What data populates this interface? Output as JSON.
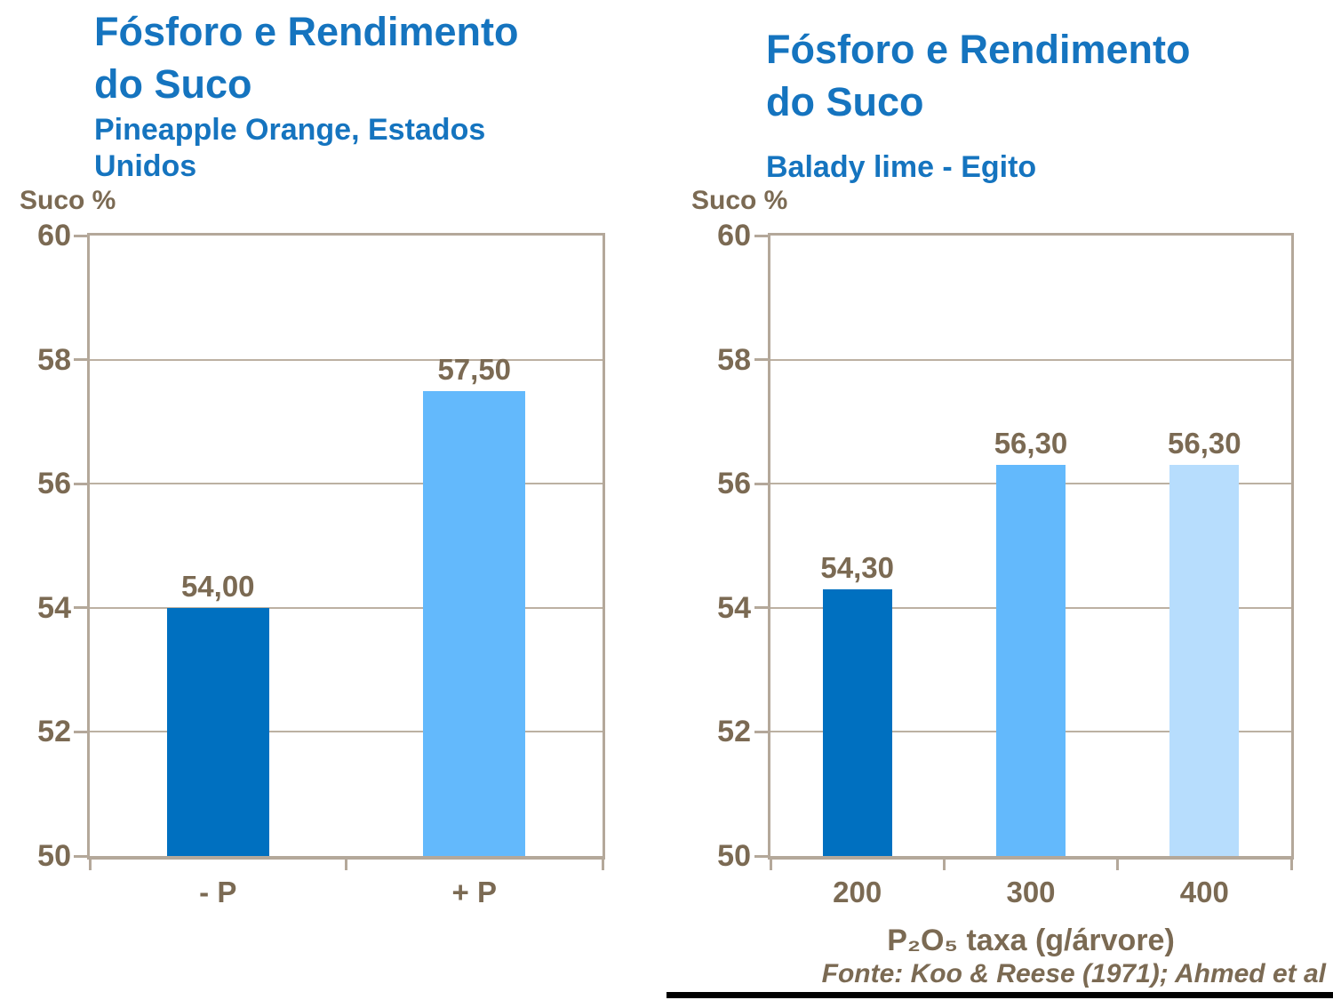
{
  "slide": {
    "source": "Fonte: Koo & Reese (1971); Ahmed et al",
    "colors": {
      "title_blue": "#1574BF",
      "label_brown": "#7B6A53",
      "axis_tan": "#B4A89A",
      "grid_tan": "#BCB1A2",
      "bar_dark_blue": "#0070C0",
      "bar_medium_blue": "#63B9FC",
      "bar_pale_blue": "#B7DDFD"
    }
  },
  "chart_data": [
    {
      "type": "bar",
      "title": "Fósforo e Rendimento\ndo Suco",
      "subtitle": "Pineapple Orange, Estados\nUnidos",
      "ylabel": "Suco %",
      "xlabel": "",
      "categories": [
        "- P",
        "+ P"
      ],
      "values": [
        54.0,
        57.5
      ],
      "value_labels": [
        "54,00",
        "57,50"
      ],
      "bar_colors": [
        "#0070C0",
        "#63B9FC"
      ],
      "ylim": [
        50,
        60
      ],
      "yticks": [
        50,
        52,
        54,
        56,
        58,
        60
      ],
      "grid": true,
      "legend": "none"
    },
    {
      "type": "bar",
      "title": "Fósforo e Rendimento\ndo Suco",
      "subtitle": "Balady lime - Egito",
      "ylabel": "Suco %",
      "xlabel": "P₂O₅ taxa (g/árvore)",
      "categories": [
        "200",
        "300",
        "400"
      ],
      "values": [
        54.3,
        56.3,
        56.3
      ],
      "value_labels": [
        "54,30",
        "56,30",
        "56,30"
      ],
      "bar_colors": [
        "#0070C0",
        "#63B9FC",
        "#B7DDFD"
      ],
      "ylim": [
        50,
        60
      ],
      "yticks": [
        50,
        52,
        54,
        56,
        58,
        60
      ],
      "grid": true,
      "legend": "none"
    }
  ]
}
